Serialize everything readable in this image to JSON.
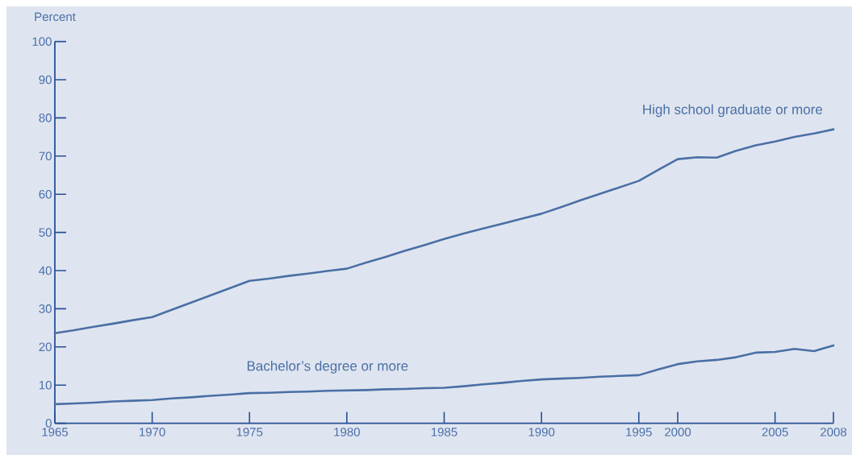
{
  "chart_data": {
    "type": "line",
    "ylabel": "Percent",
    "categories": [
      "1965",
      null,
      null,
      null,
      null,
      "1970",
      null,
      null,
      null,
      null,
      "1975",
      null,
      null,
      null,
      null,
      "1980",
      null,
      null,
      null,
      null,
      "1985",
      null,
      null,
      null,
      null,
      "1990",
      null,
      null,
      null,
      null,
      "1995",
      null,
      "2000",
      null,
      null,
      null,
      null,
      "2005",
      null,
      null,
      "2008"
    ],
    "series": [
      {
        "name": "High school graduate or more",
        "color": "#4a6fa5",
        "values": [
          23.6,
          24.4,
          25.3,
          26.1,
          27.0,
          27.8,
          29.7,
          31.6,
          33.5,
          35.4,
          37.3,
          37.9,
          38.6,
          39.2,
          39.9,
          40.5,
          42.1,
          43.6,
          45.2,
          46.7,
          48.3,
          49.7,
          51.0,
          52.3,
          53.6,
          54.9,
          56.6,
          58.4,
          60.1,
          61.8,
          63.5,
          66.4,
          69.2,
          69.7,
          69.6,
          71.4,
          72.8,
          73.8,
          75.0,
          75.9,
          77.0
        ]
      },
      {
        "name": "Bachelor’s degree or more",
        "color": "#4a6fa5",
        "values": [
          5.0,
          5.2,
          5.4,
          5.7,
          5.9,
          6.1,
          6.5,
          6.8,
          7.2,
          7.5,
          7.9,
          8.0,
          8.2,
          8.3,
          8.5,
          8.6,
          8.7,
          8.9,
          9.0,
          9.2,
          9.3,
          9.7,
          10.2,
          10.6,
          11.1,
          11.5,
          11.7,
          11.9,
          12.2,
          12.4,
          12.6,
          14.1,
          15.5,
          16.2,
          16.6,
          17.3,
          18.5,
          18.7,
          19.5,
          18.9,
          20.4
        ]
      }
    ],
    "ylim": [
      0,
      100
    ],
    "yticks": [
      0,
      10,
      20,
      30,
      40,
      50,
      60,
      70,
      80,
      90,
      100
    ]
  }
}
